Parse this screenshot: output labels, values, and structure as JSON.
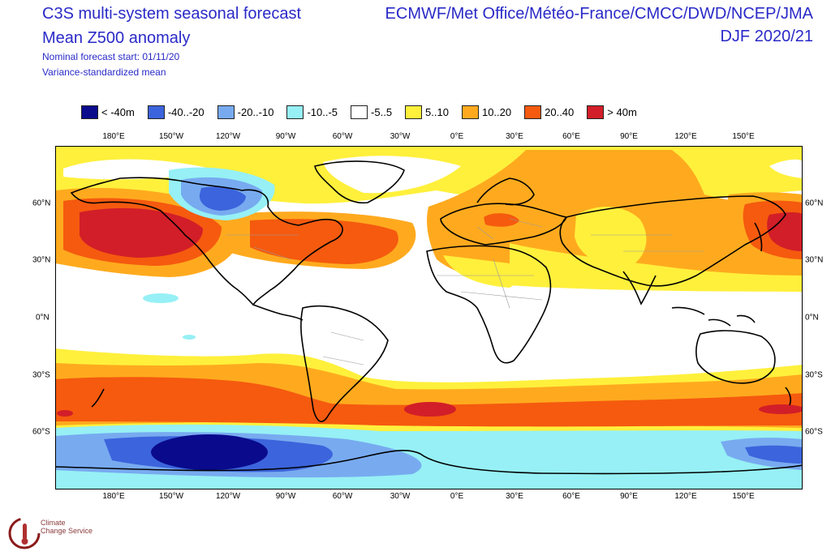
{
  "header": {
    "title_line1": "C3S multi-system seasonal forecast",
    "title_line2": "Mean Z500 anomaly",
    "subtitle1": "Nominal forecast start: 01/11/20",
    "subtitle2": "Variance-standardized mean",
    "centres": "ECMWF/Met Office/Météo-France/CMCC/DWD/NCEP/JMA",
    "season": "DJF 2020/21"
  },
  "legend": [
    {
      "label": "< -40m",
      "color": "#0a0a8c"
    },
    {
      "label": "-40..-20",
      "color": "#3c64dc"
    },
    {
      "label": "-20..-10",
      "color": "#78aaf0"
    },
    {
      "label": "-10..-5",
      "color": "#96f0f5"
    },
    {
      "label": "-5..5",
      "color": "#ffffff"
    },
    {
      "label": "5..10",
      "color": "#fff03c"
    },
    {
      "label": "10..20",
      "color": "#ffaa1e"
    },
    {
      "label": "20..40",
      "color": "#f55a0f"
    },
    {
      "label": "> 40m",
      "color": "#d21e28"
    }
  ],
  "lon_labels": [
    "180°E",
    "150°W",
    "120°W",
    "90°W",
    "60°W",
    "30°W",
    "0°E",
    "30°E",
    "60°E",
    "90°E",
    "120°E",
    "150°E"
  ],
  "lat_labels": [
    "60°N",
    "30°N",
    "0°N",
    "30°S",
    "60°S"
  ],
  "logo": {
    "line1": "Climate",
    "line2": "Change Service"
  }
}
